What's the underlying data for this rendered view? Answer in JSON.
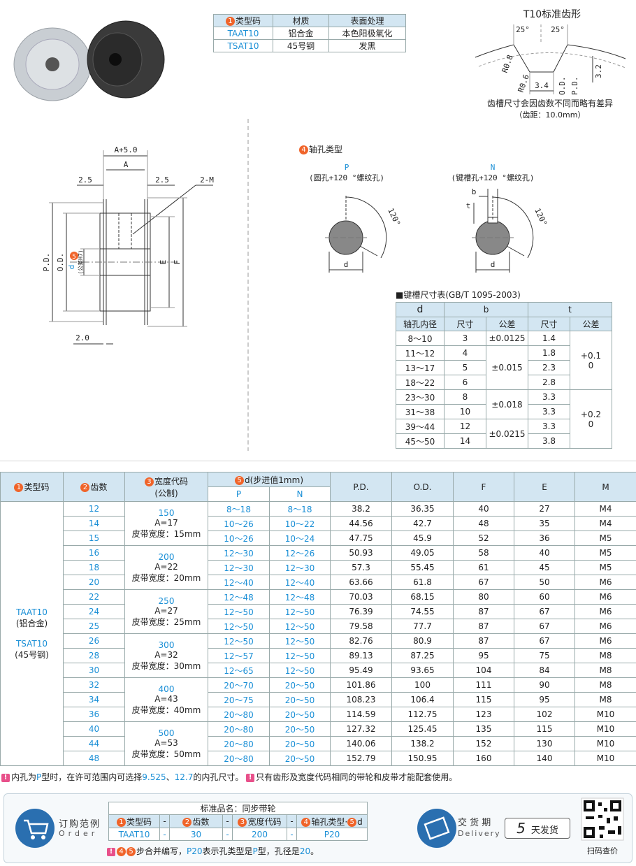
{
  "material_table": {
    "headers": [
      [
        {
          "badge": "1"
        },
        {
          "text": "类型码"
        }
      ],
      [
        {
          "text": "材质"
        }
      ],
      [
        {
          "text": "表面处理"
        }
      ]
    ],
    "rows": [
      [
        "TAAT10",
        "铝合金",
        "本色阳极氧化"
      ],
      [
        "TSAT10",
        "45号钢",
        "发黑"
      ]
    ]
  },
  "tooth_profile": {
    "title": "T10标准齿形",
    "angle_left": "25°",
    "angle_right": "25°",
    "r_top": "R0.8",
    "r_bottom": "R0.6",
    "bottom_width": "3.4",
    "od": "O.D.",
    "pd": "P.D.",
    "depth": "3.2",
    "note": "齿槽尺寸会因齿数不同而略有差异",
    "pitch": "（齿距：10.0mm）"
  },
  "pulley_drawing": {
    "a_plus": "A+5.0",
    "a": "A",
    "left_gap": "2.5",
    "right_gap": "2.5",
    "thread": "2-M",
    "pd": "P.D.",
    "od": "O.D.",
    "badge": "5",
    "d": "d",
    "d_tolerance": "(公差H7)",
    "e": "E",
    "f": "F",
    "flange": "2.0"
  },
  "bore_types": {
    "title": [
      {
        "badge": "4"
      },
      {
        "text": "轴孔类型"
      }
    ],
    "p": {
      "code": "P",
      "desc": "(圆孔+120 °螺纹孔)",
      "angle": "120°",
      "d": "d"
    },
    "n": {
      "code": "N",
      "desc": "(键槽孔+120 °螺纹孔)",
      "angle": "120°",
      "d": "d",
      "b": "b",
      "t": "t"
    }
  },
  "keyway_table": {
    "title": "■键槽尺寸表(GB/T 1095-2003)",
    "header_top": [
      "d",
      "b",
      "t"
    ],
    "header_sub": [
      "轴孔内径",
      "尺寸",
      "公差",
      "尺寸",
      "公差"
    ],
    "rows": [
      [
        "8～10",
        "3",
        "±0.0125",
        "1.4",
        [
          "+0.1",
          "0"
        ]
      ],
      [
        "11～12",
        "4",
        "±0.015",
        "1.8",
        null
      ],
      [
        "13～17",
        "5",
        null,
        "2.3",
        null
      ],
      [
        "18～22",
        "6",
        null,
        "2.8",
        null
      ],
      [
        "23～30",
        "8",
        "±0.018",
        "3.3",
        [
          "+0.2",
          "0"
        ]
      ],
      [
        "31～38",
        "10",
        null,
        "3.3",
        null
      ],
      [
        "39～44",
        "12",
        "±0.0215",
        "3.3",
        null
      ],
      [
        "45～50",
        "14",
        null,
        "3.8",
        null
      ]
    ]
  },
  "main_table": {
    "type_header": [
      {
        "badge": "1"
      },
      {
        "text": "类型码"
      }
    ],
    "teeth_header": [
      {
        "badge": "2"
      },
      {
        "text": "齿数"
      }
    ],
    "width_header": [
      {
        "badge": "3"
      },
      {
        "text": "宽度代码"
      }
    ],
    "width_header_sub": "(公制)",
    "bore_header": [
      {
        "badge": "5"
      },
      {
        "text": "d(步进值1mm)"
      }
    ],
    "bore_sub": [
      "P",
      "N"
    ],
    "cols": [
      "P.D.",
      "O.D.",
      "F",
      "E",
      "M"
    ],
    "type_cell": [
      "TAAT10",
      "(铝合金)",
      "TSAT10",
      "(45号钢)"
    ],
    "width_codes": [
      {
        "code": "150",
        "a": "A=17",
        "belt": "皮带宽度：15mm"
      },
      null,
      null,
      {
        "code": "200",
        "a": "A=22",
        "belt": "皮带宽度：20mm"
      },
      null,
      null,
      {
        "code": "250",
        "a": "A=27",
        "belt": "皮带宽度：25mm"
      },
      null,
      null,
      {
        "code": "300",
        "a": "A=32",
        "belt": "皮带宽度：30mm"
      },
      null,
      null,
      {
        "code": "400",
        "a": "A=43",
        "belt": "皮带宽度：40mm"
      },
      null,
      null,
      {
        "code": "500",
        "a": "A=53",
        "belt": "皮带宽度：50mm"
      },
      null,
      null
    ],
    "rows": [
      [
        "12",
        "8～18",
        "8～18",
        "38.2",
        "36.35",
        "40",
        "27",
        "M4"
      ],
      [
        "14",
        "10～26",
        "10～22",
        "44.56",
        "42.7",
        "48",
        "35",
        "M4"
      ],
      [
        "15",
        "10～26",
        "10～24",
        "47.75",
        "45.9",
        "52",
        "36",
        "M5"
      ],
      [
        "16",
        "12～30",
        "12～26",
        "50.93",
        "49.05",
        "58",
        "40",
        "M5"
      ],
      [
        "18",
        "12～30",
        "12～30",
        "57.3",
        "55.45",
        "61",
        "45",
        "M5"
      ],
      [
        "20",
        "12～40",
        "12～40",
        "63.66",
        "61.8",
        "67",
        "50",
        "M6"
      ],
      [
        "22",
        "12～48",
        "12～48",
        "70.03",
        "68.15",
        "80",
        "60",
        "M6"
      ],
      [
        "24",
        "12～50",
        "12～50",
        "76.39",
        "74.55",
        "87",
        "67",
        "M6"
      ],
      [
        "25",
        "12～50",
        "12～50",
        "79.58",
        "77.7",
        "87",
        "67",
        "M6"
      ],
      [
        "26",
        "12～50",
        "12～50",
        "82.76",
        "80.9",
        "87",
        "67",
        "M6"
      ],
      [
        "28",
        "12～57",
        "12～50",
        "89.13",
        "87.25",
        "95",
        "75",
        "M8"
      ],
      [
        "30",
        "12～65",
        "12～50",
        "95.49",
        "93.65",
        "104",
        "84",
        "M8"
      ],
      [
        "32",
        "20～70",
        "20～50",
        "101.86",
        "100",
        "111",
        "90",
        "M8"
      ],
      [
        "34",
        "20～75",
        "20～50",
        "108.23",
        "106.4",
        "115",
        "95",
        "M8"
      ],
      [
        "36",
        "20～80",
        "20～50",
        "114.59",
        "112.75",
        "123",
        "102",
        "M10"
      ],
      [
        "40",
        "20～80",
        "20～50",
        "127.32",
        "125.45",
        "135",
        "115",
        "M10"
      ],
      [
        "44",
        "20～80",
        "20～50",
        "140.06",
        "138.2",
        "152",
        "130",
        "M10"
      ],
      [
        "48",
        "20～80",
        "20～50",
        "152.79",
        "150.95",
        "160",
        "140",
        "M10"
      ]
    ]
  },
  "notes": [
    {
      "warn": "!"
    },
    {
      "text": "内孔为"
    },
    {
      "text": "P",
      "blue": true
    },
    {
      "text": "型时，在许可范围内可选择"
    },
    {
      "text": "9.525",
      "blue": true
    },
    {
      "text": "、"
    },
    {
      "text": "12.7",
      "blue": true
    },
    {
      "text": "的内孔尺寸。 "
    },
    {
      "warn": "!"
    },
    {
      "text": "只有齿形及宽度代码相同的带轮和皮带才能配套使用。"
    }
  ],
  "order": {
    "title": "订购范例",
    "sub": "Order",
    "table_title": "标准品名：同步带轮",
    "headers": [
      [
        {
          "badge": "1"
        },
        {
          "text": "类型码"
        }
      ],
      [
        {
          "text": "-"
        }
      ],
      [
        {
          "badge": "2"
        },
        {
          "text": "齿数"
        }
      ],
      [
        {
          "text": "-"
        }
      ],
      [
        {
          "badge": "3"
        },
        {
          "text": "宽度代码"
        }
      ],
      [
        {
          "text": "-"
        }
      ],
      [
        {
          "badge": "4"
        },
        {
          "text": "轴孔类型·"
        },
        {
          "badge": "5"
        },
        {
          "text": "d"
        }
      ]
    ],
    "values": [
      "TAAT10",
      "-",
      "30",
      "-",
      "200",
      "-",
      "P20"
    ],
    "note": [
      {
        "warn": "!"
      },
      {
        "badge": "4"
      },
      {
        "badge": "5"
      },
      {
        "text": "步合并编写，"
      },
      {
        "text": "P20",
        "blue": true
      },
      {
        "text": "表示孔类型是"
      },
      {
        "text": "P",
        "blue": true
      },
      {
        "text": "型，孔径是"
      },
      {
        "text": "20",
        "blue": true
      },
      {
        "text": "。"
      }
    ]
  },
  "delivery": {
    "title": "交 货 期",
    "sub": "Delivery",
    "days": "5",
    "days_text": "天发货",
    "qr_caption": "扫码查价"
  }
}
